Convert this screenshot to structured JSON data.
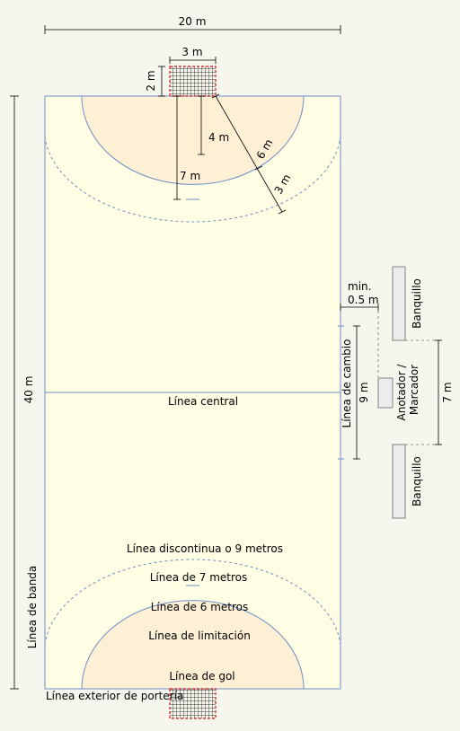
{
  "colors": {
    "court": "#fffde3",
    "goal_area": "#fdf0d5",
    "line": "#6f8fc4",
    "dim": "#000000",
    "net_border": "#d0181b",
    "bench_fill": "#ececec"
  },
  "dimensions": {
    "width_label": "20 m",
    "length_label": "40 m",
    "goal_width_label": "3 m",
    "goal_depth_label": "2 m",
    "four_m_label": "4 m",
    "seven_m_label": "7 m",
    "six_m_label": "6 m",
    "three_m_label": "3 m",
    "min_label_1": "min.",
    "min_label_2": "0.5 m",
    "nine_m_label": "9 m",
    "bench_span_label": "7 m"
  },
  "labels": {
    "center_line": "Línea central",
    "substitution_line": "Línea de cambio",
    "dashed_line": "Línea discontinua o 9 metros",
    "seven_m_line": "Línea de 7 metros",
    "six_m_line": "Línea de 6 metros",
    "restraining_line": "Línea de limitación",
    "goal_line": "Línea de gol",
    "outer_goal_line": "Línea exterior de portería",
    "side_line": "Línea de banda",
    "bench_top": "Banquillo",
    "bench_bottom": "Banquillo",
    "scorer_1": "Anotador /",
    "scorer_2": "Marcador"
  }
}
